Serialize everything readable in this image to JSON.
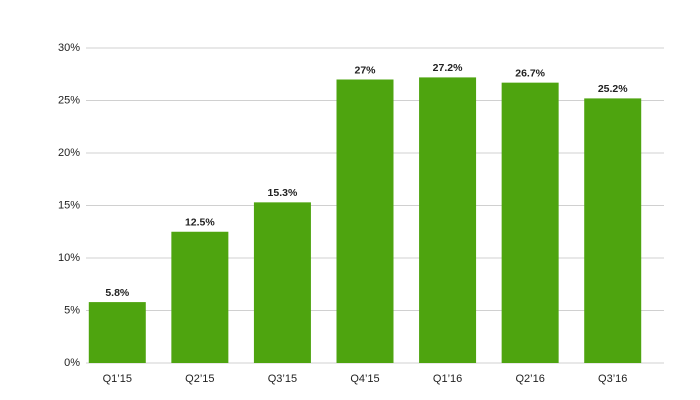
{
  "chart_data": {
    "type": "bar",
    "categories": [
      "Q1’15",
      "Q2’15",
      "Q3’15",
      "Q4’15",
      "Q1’16",
      "Q2’16",
      "Q3’16"
    ],
    "values": [
      5.8,
      12.5,
      15.3,
      27,
      27.2,
      26.7,
      25.2
    ],
    "value_labels": [
      "5.8%",
      "12.5%",
      "15.3%",
      "27%",
      "27.2%",
      "26.7%",
      "25.2%"
    ],
    "color": "#4ea40f",
    "ylim": [
      0,
      30
    ],
    "yticks": [
      {
        "value": 0,
        "label": "0%"
      },
      {
        "value": 5,
        "label": "5%"
      },
      {
        "value": 10,
        "label": "10%"
      },
      {
        "value": 15,
        "label": "15%"
      },
      {
        "value": 20,
        "label": "20%"
      },
      {
        "value": 25,
        "label": "25%"
      },
      {
        "value": 30,
        "label": "30%"
      }
    ],
    "grid": true
  }
}
